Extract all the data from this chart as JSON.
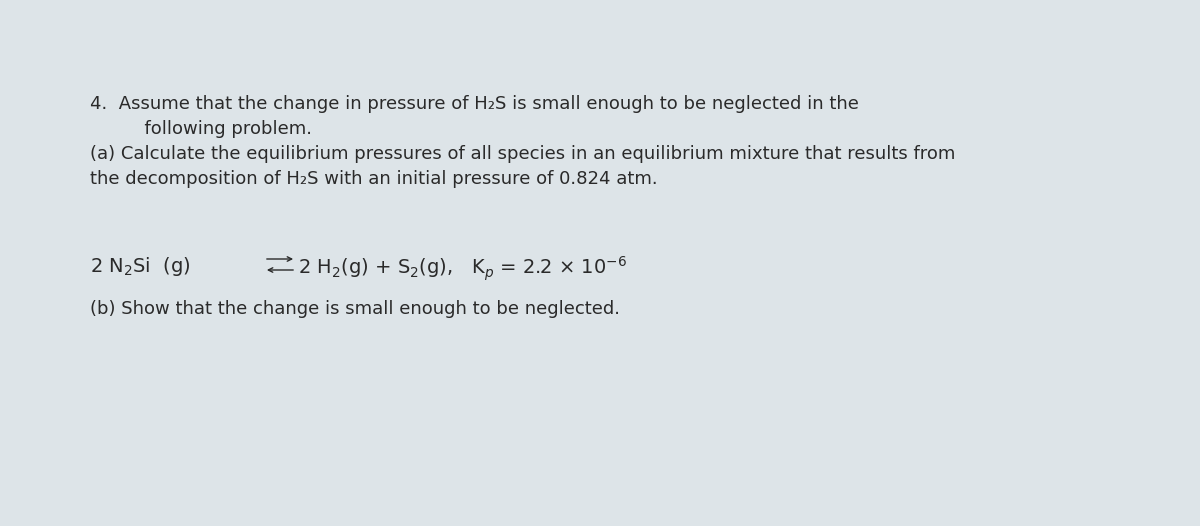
{
  "background_color": "#dde4e8",
  "text_color": "#2a2a2a",
  "figsize": [
    12.0,
    5.26
  ],
  "dpi": 100,
  "line1": "4.  Assume that the change in pressure of H₂S is small enough to be neglected in the",
  "line2": "      following problem.",
  "line3": "(a) Calculate the equilibrium pressures of all species in an equilibrium mixture that results from",
  "line4": "the decomposition of H₂S with an initial pressure of 0.824 atm.",
  "line_eq_left": "2 N₂Si  (g)",
  "line_eq_right": "2 H₂(g) + S₂(g),   Kₕ = 2.2 × 10⁻⁶",
  "line_b": "(b) Show that the change is small enough to be neglected.",
  "font_size_main": 13.0,
  "font_size_equation": 14.0
}
